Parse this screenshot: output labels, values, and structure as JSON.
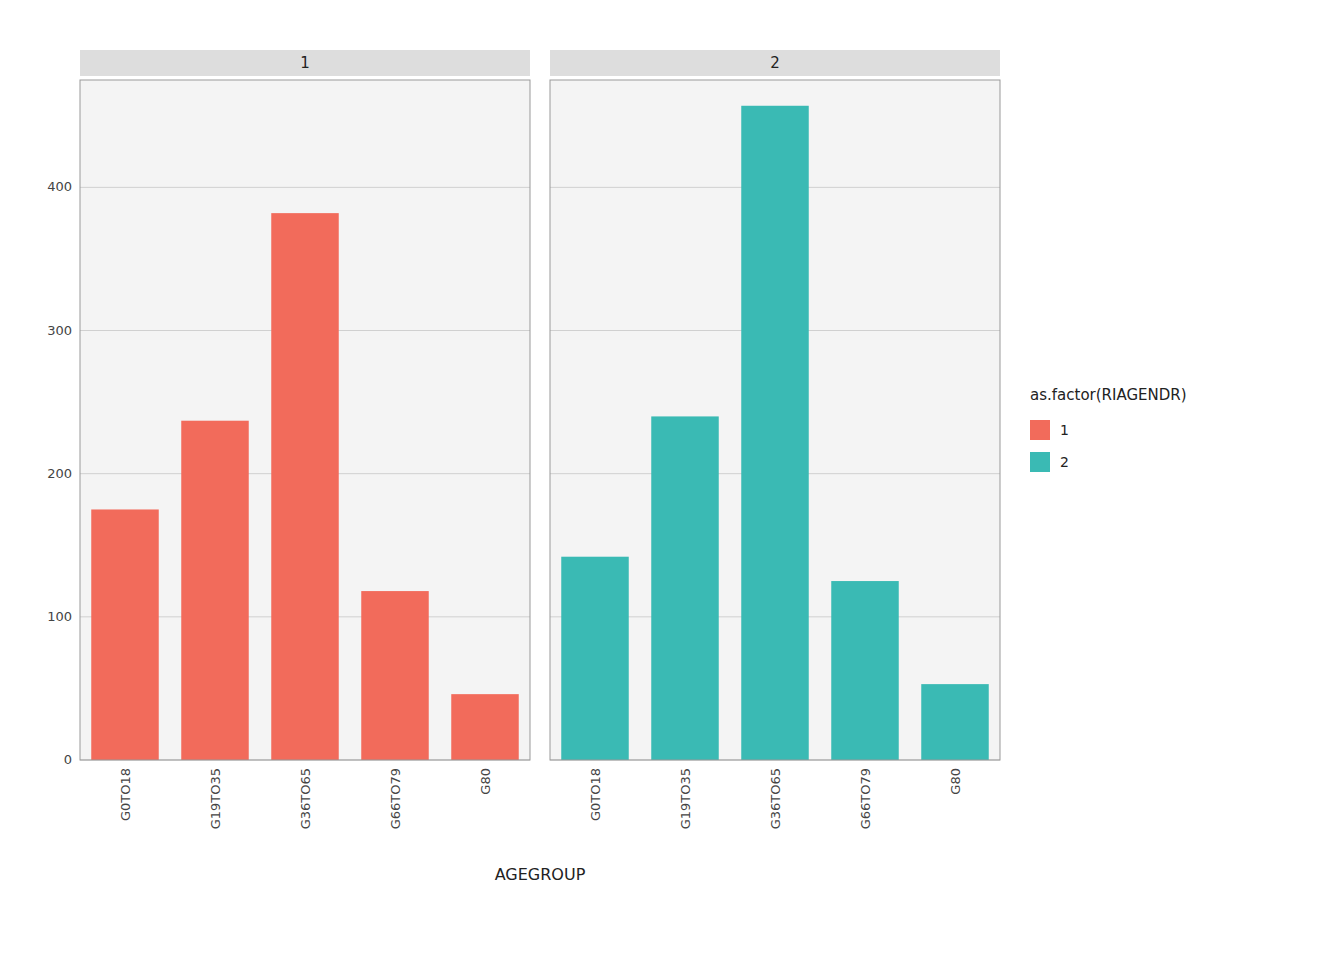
{
  "chart_data": [
    {
      "type": "bar",
      "title": "1",
      "xlabel": "AGEGROUP",
      "legend_title": "as.factor(RIAGENDR)",
      "legend": "right",
      "categories": [
        "G0TO18",
        "G19TO35",
        "G36TO65",
        "G66TO79",
        "G80"
      ],
      "series": [
        {
          "name": "1",
          "color": "#F26B5B",
          "values": [
            175,
            237,
            382,
            118,
            46
          ]
        }
      ],
      "ylim": [
        0,
        475
      ],
      "yticks": [
        0,
        100,
        200,
        300,
        400
      ],
      "grid": true
    },
    {
      "type": "bar",
      "title": "2",
      "categories": [
        "G0TO18",
        "G19TO35",
        "G36TO65",
        "G66TO79",
        "G80"
      ],
      "series": [
        {
          "name": "2",
          "color": "#3ABAB4",
          "values": [
            142,
            240,
            457,
            125,
            53
          ]
        }
      ],
      "ylim": [
        0,
        475
      ],
      "yticks": [
        0,
        100,
        200,
        300,
        400
      ],
      "grid": true,
      "tick_labels": "x"
    }
  ]
}
